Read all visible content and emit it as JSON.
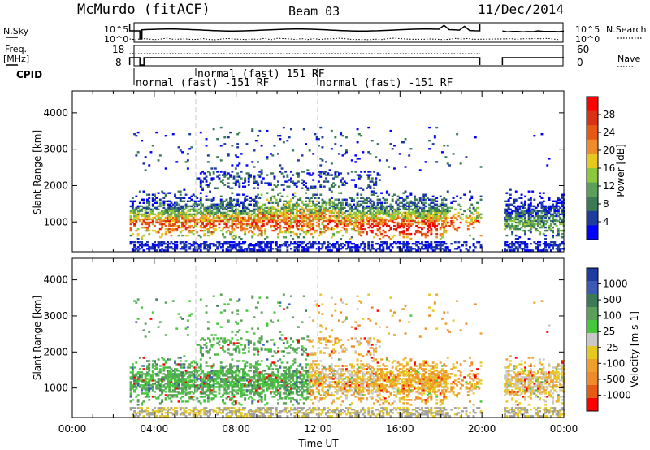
{
  "header": {
    "station": "McMurdo (fitACF)",
    "beam": "Beam 03",
    "date": "11/Dec/2014"
  },
  "status_panels": {
    "nsky_label": "N.Sky",
    "nsky_ticks": [
      "10^5",
      "10^0"
    ],
    "nsearch_label": "N.Search",
    "nsearch_ticks": [
      "10^5",
      "10^0"
    ],
    "freq_label": [
      "Freq.",
      "[MHz]"
    ],
    "freq_ticks": [
      "18",
      "8"
    ],
    "nave_label": "Nave",
    "nave_ticks": [
      "60",
      "0"
    ],
    "cpid_label": "CPID",
    "cpid_segments": [
      {
        "label": "normal (fast) -151 RF",
        "start_hour": 2.8
      },
      {
        "label": "normal (fast) 151 RF",
        "start_hour": 6.0
      },
      {
        "label": "normal (fast) -151 RF",
        "start_hour": 12.0
      }
    ]
  },
  "chart_data": [
    {
      "type": "heatmap",
      "title": "Power",
      "xlabel": "Time UT",
      "ylabel": "Slant Range [km]",
      "x_ticks": [
        "00:00",
        "04:00",
        "08:00",
        "12:00",
        "16:00",
        "20:00",
        "00:00"
      ],
      "xlim_hours": [
        0,
        24
      ],
      "y_ticks": [
        1000,
        2000,
        3000,
        4000
      ],
      "ylim": [
        180,
        4600
      ],
      "data_gaps_hours": [
        [
          0,
          2.8
        ],
        [
          19.9,
          21.0
        ]
      ],
      "colorbar": {
        "label": "Power [dB]",
        "tick_labels": [
          "4",
          "8",
          "12",
          "16",
          "20",
          "24",
          "28"
        ],
        "colors": [
          "#0000ff",
          "#1e3c9c",
          "#3a7a55",
          "#5aa05a",
          "#8cc83c",
          "#e6c81e",
          "#f08c28",
          "#e65a14",
          "#dc3214",
          "#ff0000"
        ]
      }
    },
    {
      "type": "heatmap",
      "title": "Velocity",
      "xlabel": "Time UT",
      "ylabel": "Slant Range [km]",
      "x_ticks": [
        "00:00",
        "04:00",
        "08:00",
        "12:00",
        "16:00",
        "20:00",
        "00:00"
      ],
      "xlim_hours": [
        0,
        24
      ],
      "y_ticks": [
        1000,
        2000,
        3000,
        4000
      ],
      "ylim": [
        180,
        4600
      ],
      "data_gaps_hours": [
        [
          0,
          2.8
        ],
        [
          19.9,
          21.0
        ]
      ],
      "colorbar": {
        "label": "Velocity [m s-1]",
        "tick_labels": [
          "1000",
          "500",
          "100",
          "25",
          "-25",
          "-100",
          "-500",
          "-1000"
        ],
        "colors": [
          "#1e3ca0",
          "#3c5ab4",
          "#3a7a55",
          "#5aa05a",
          "#46c83c",
          "#c8c8c8",
          "#e6c81e",
          "#f0a028",
          "#f08c28",
          "#e65a14",
          "#ff0000"
        ]
      }
    }
  ],
  "colors": {
    "ground_scatter": "#a0a0a0",
    "frame": "#000000",
    "marker_line": "#c8c8c8"
  }
}
